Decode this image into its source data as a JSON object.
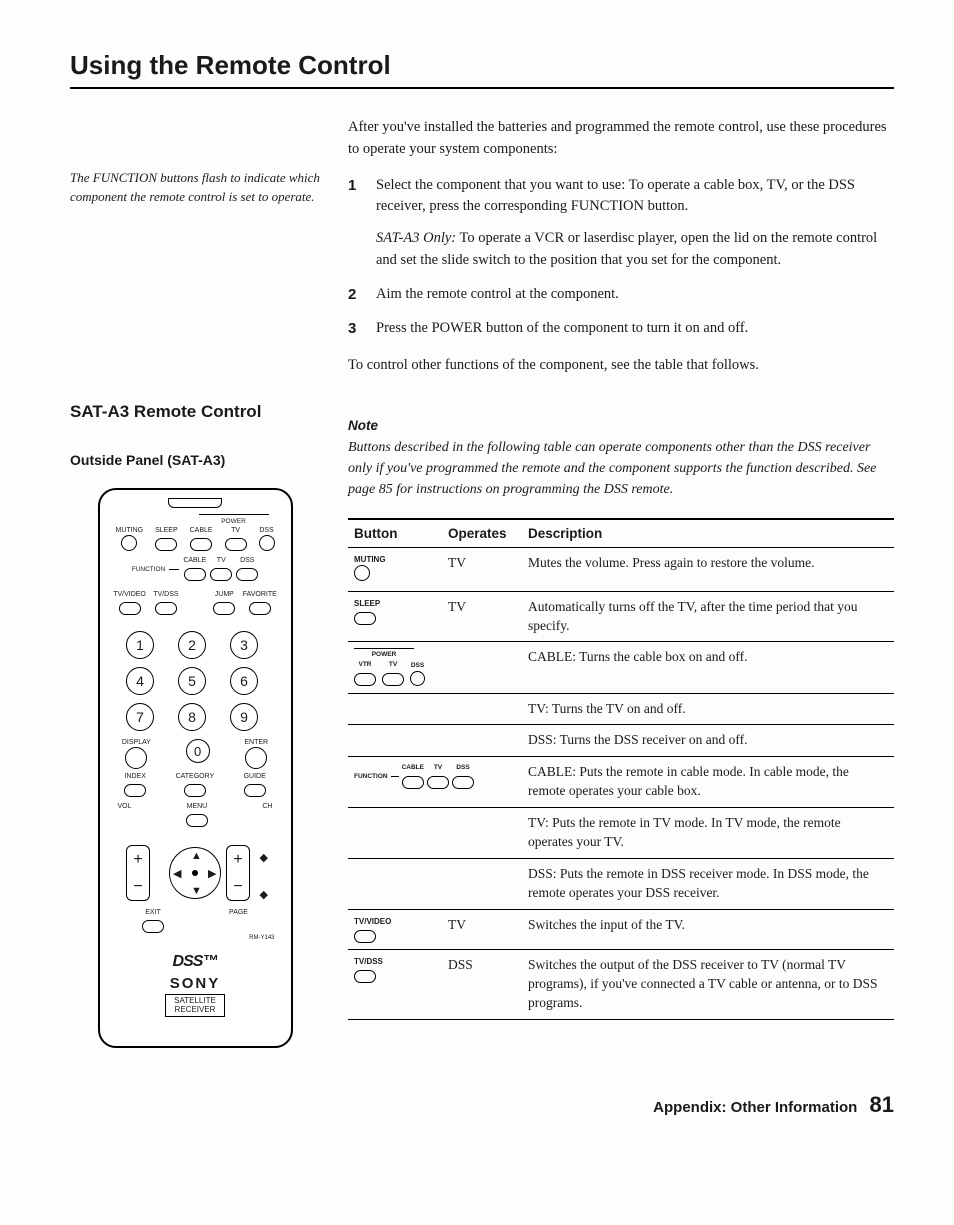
{
  "title": "Using the Remote Control",
  "side_note": "The FUNCTION buttons flash to indicate which component the remote control is set to operate.",
  "intro": "After you've installed the batteries and programmed the remote control, use these procedures to operate your system components:",
  "steps": [
    {
      "num": "1",
      "body": "Select the component that you want to use: To operate a cable box, TV, or the DSS receiver, press the corresponding FUNCTION button.",
      "sub_em": "SAT-A3 Only:",
      "sub_rest": " To operate a VCR or laserdisc player, open the lid on the remote control and set the slide switch to the position that you set for the component."
    },
    {
      "num": "2",
      "body": "Aim the remote control at the component."
    },
    {
      "num": "3",
      "body": "Press the POWER button of the component to turn it on and off."
    }
  ],
  "after_steps": "To control other functions of the component, see the table that follows.",
  "h2": "SAT-A3 Remote Control",
  "h3": "Outside Panel (SAT-A3)",
  "note_head": "Note",
  "note_body": "Buttons described in the following table can operate components other than the DSS receiver only if you've programmed the remote and the component supports the function described. See page 85 for instructions on programming the DSS remote.",
  "table": {
    "headers": [
      "Button",
      "Operates",
      "Description"
    ],
    "rows": [
      {
        "btn": "MUTING",
        "shape": "circ",
        "op": "TV",
        "desc": "Mutes the volume. Press again to restore the volume."
      },
      {
        "btn": "SLEEP",
        "shape": "oval",
        "op": "TV",
        "desc": "Automatically turns off the TV, after the time period that you specify."
      },
      {
        "btn": "POWER",
        "shape": "power3",
        "op": "",
        "desc": "CABLE: Turns the cable box on and off."
      },
      {
        "btn": "",
        "shape": "",
        "op": "",
        "desc": "TV: Turns the TV on and off."
      },
      {
        "btn": "",
        "shape": "",
        "op": "",
        "desc": "DSS: Turns the DSS receiver on and off."
      },
      {
        "btn": "FUNCTION",
        "shape": "func3",
        "op": "",
        "desc": "CABLE: Puts the remote in cable mode. In cable mode, the remote operates your cable box."
      },
      {
        "btn": "",
        "shape": "",
        "op": "",
        "desc": "TV: Puts the remote in TV mode. In TV mode, the remote operates your TV."
      },
      {
        "btn": "",
        "shape": "",
        "op": "",
        "desc": "DSS: Puts the remote in DSS receiver mode. In DSS mode, the remote operates your DSS receiver."
      },
      {
        "btn": "TV/VIDEO",
        "shape": "oval",
        "op": "TV",
        "desc": "Switches the input of the TV."
      },
      {
        "btn": "TV/DSS",
        "shape": "oval",
        "op": "DSS",
        "desc": "Switches the output of the DSS receiver to TV (normal TV programs), if you've connected a TV cable or antenna, or to DSS programs."
      }
    ]
  },
  "remote": {
    "top_row": [
      "MUTING",
      "SLEEP",
      "CABLE",
      "TV",
      "DSS"
    ],
    "power_label": "POWER",
    "func_label": "FUNCTION",
    "func_row": [
      "CABLE",
      "TV",
      "DSS"
    ],
    "mid_left": [
      "TV/VIDEO",
      "TV/DSS"
    ],
    "mid_right": [
      "JUMP",
      "FAVORITE"
    ],
    "keypad": [
      "1",
      "2",
      "3",
      "4",
      "5",
      "6",
      "7",
      "8",
      "9"
    ],
    "bottom_keys": [
      "DISPLAY",
      "0",
      "ENTER"
    ],
    "small_row": [
      "INDEX",
      "CATEGORY",
      "GUIDE"
    ],
    "menu": "MENU",
    "vol": "VOL",
    "ch": "CH",
    "exit": "EXIT",
    "page": "PAGE",
    "model": "RM-Y143",
    "dss": "DSS™",
    "sony": "SONY",
    "sat": "SATELLITE\nRECEIVER"
  },
  "footer": "Appendix: Other Information",
  "page_num": "81"
}
